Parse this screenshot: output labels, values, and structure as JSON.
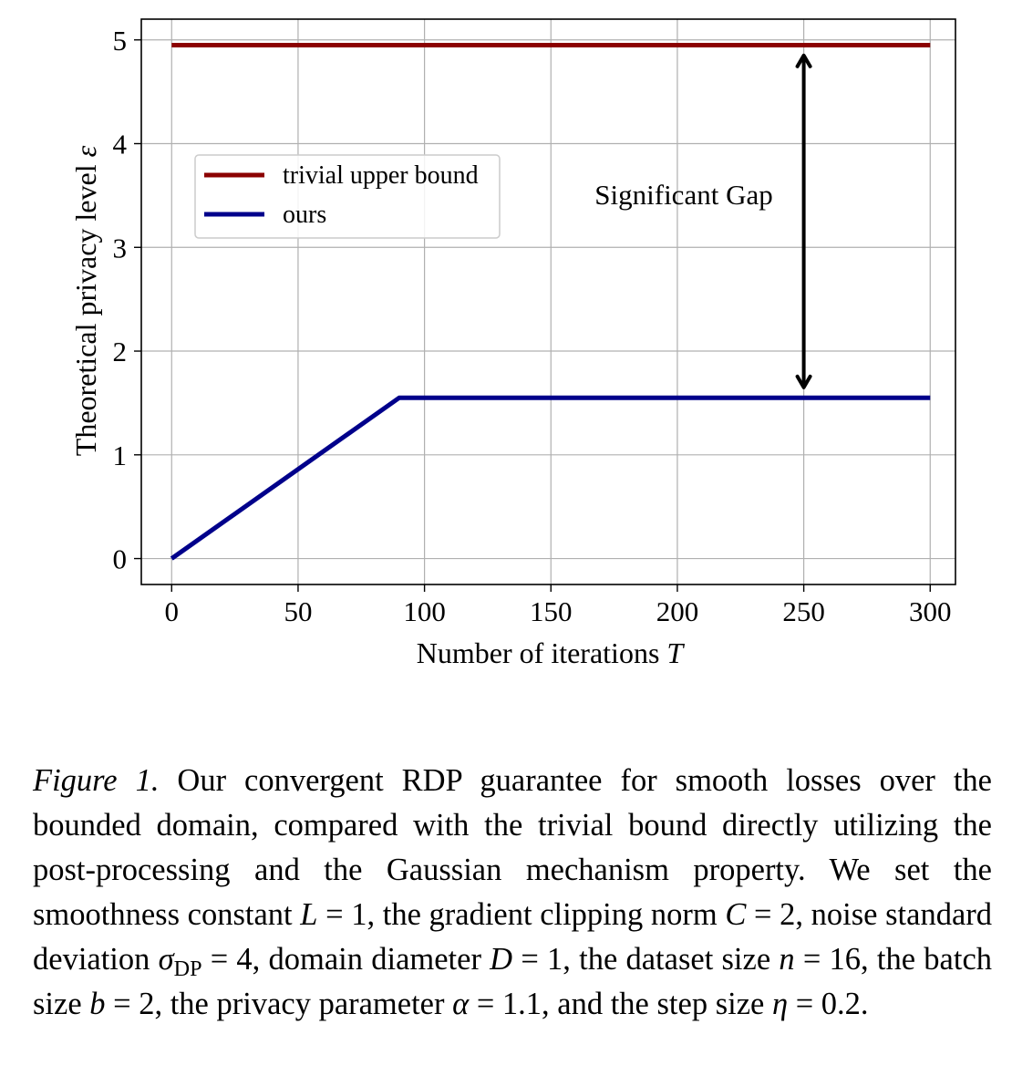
{
  "chart_data": {
    "type": "line",
    "xlabel_text": "Number of iterations ",
    "xlabel_var": "T",
    "ylabel_text": "Theoretical privacy level ",
    "ylabel_var": "ε",
    "xlim": [
      -12,
      310
    ],
    "ylim": [
      -0.25,
      5.2
    ],
    "x_ticks": [
      0,
      50,
      100,
      150,
      200,
      250,
      300
    ],
    "y_ticks": [
      0,
      1,
      2,
      3,
      4,
      5
    ],
    "grid": true,
    "legend_position": "upper-left",
    "series": [
      {
        "name": "trivial upper bound",
        "color": "#8b0000",
        "points": [
          [
            0,
            4.95
          ],
          [
            300,
            4.95
          ]
        ]
      },
      {
        "name": "ours",
        "color": "#00008b",
        "points": [
          [
            0,
            0
          ],
          [
            90,
            1.55
          ],
          [
            300,
            1.55
          ]
        ]
      }
    ],
    "annotation": {
      "text": "Significant Gap",
      "arrow_x": 250,
      "arrow_from": 1.65,
      "arrow_to": 4.85
    }
  },
  "caption": {
    "label": "Figure 1.",
    "parts": [
      {
        "t": " Our convergent RDP guarantee for smooth losses over the bounded domain, compared with the trivial bound directly utilizing the post-processing and the Gaussian mechanism property. We set the smoothness constant "
      },
      {
        "m": "L"
      },
      {
        "t": " = 1, the gradient clipping norm "
      },
      {
        "m": "C"
      },
      {
        "t": " = 2, noise standard deviation "
      },
      {
        "m": "σ",
        "sub": "DP"
      },
      {
        "t": " = 4, domain diameter "
      },
      {
        "m": "D"
      },
      {
        "t": " = 1, the dataset size "
      },
      {
        "m": "n"
      },
      {
        "t": " = 16, the batch size "
      },
      {
        "m": "b"
      },
      {
        "t": " = 2, the privacy parameter "
      },
      {
        "m": "α"
      },
      {
        "t": " = 1.1, and the step size "
      },
      {
        "m": "η"
      },
      {
        "t": " = 0.2."
      }
    ]
  }
}
